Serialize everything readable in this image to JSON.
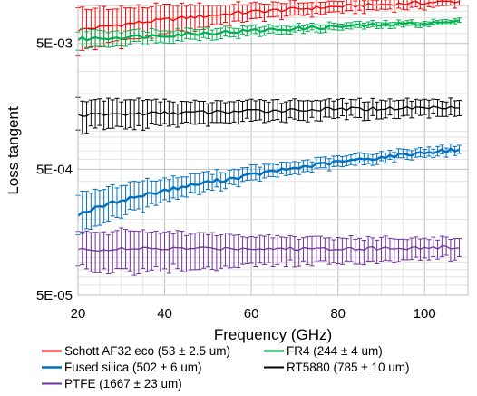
{
  "chart_data": {
    "type": "line",
    "xlabel": "Frequency (GHz)",
    "ylabel": "Loss tangent",
    "xlim": [
      20,
      110
    ],
    "ylim": [
      5e-05,
      0.01
    ],
    "y_scale": "log",
    "grid": true,
    "x_ticks": [
      {
        "value": 20,
        "label": "20"
      },
      {
        "value": 40,
        "label": "40"
      },
      {
        "value": 60,
        "label": "60"
      },
      {
        "value": 80,
        "label": "80"
      },
      {
        "value": 100,
        "label": "100"
      }
    ],
    "y_ticks": [
      {
        "value": 0.005,
        "label": "5E-03"
      },
      {
        "value": 0.0005,
        "label": "5E-04"
      },
      {
        "value": 5e-05,
        "label": "5E-05"
      }
    ],
    "legend_placement": "bottom",
    "series": [
      {
        "name": "Schott AF32 eco (53 ± 2.5 um)",
        "color": "#ff0000",
        "line_width": 1.4,
        "x": [
          20,
          40,
          60,
          80,
          108
        ],
        "y": [
          0.0064,
          0.0077,
          0.0089,
          0.0098,
          0.0108
        ],
        "err_low": [
          0.0022,
          0.0018,
          0.0012,
          0.001,
          0.0009
        ],
        "err_high": [
          0.0032,
          0.0022,
          0.0014,
          0.0011,
          0.001
        ]
      },
      {
        "name": "FR4 (244 ± 4 um)",
        "color": "#00b050",
        "line_width": 2.2,
        "x": [
          20,
          40,
          60,
          80,
          108
        ],
        "y": [
          0.0054,
          0.0058,
          0.0063,
          0.0068,
          0.0074
        ],
        "err_low": [
          0.0008,
          0.0006,
          0.0005,
          0.0004,
          0.0003
        ],
        "err_high": [
          0.0009,
          0.0006,
          0.0005,
          0.0004,
          0.0003
        ]
      },
      {
        "name": "Fused silica (502 ± 6 um)",
        "color": "#0070c0",
        "line_width": 2.4,
        "x": [
          20,
          25,
          30,
          35,
          40,
          45,
          50,
          55,
          60,
          65,
          70,
          75,
          80,
          85,
          90,
          95,
          100,
          105,
          108
        ],
        "y": [
          0.00022,
          0.00025,
          0.000285,
          0.00031,
          0.00034,
          0.000365,
          0.000395,
          0.00042,
          0.00045,
          0.00048,
          0.00051,
          0.00054,
          0.00057,
          0.000595,
          0.00062,
          0.00065,
          0.00068,
          0.0007,
          0.00072
        ],
        "err_low": [
          7e-05,
          7e-05,
          7e-05,
          7e-05,
          6e-05,
          6e-05,
          6e-05,
          5e-05,
          5e-05,
          5e-05,
          5e-05,
          5e-05,
          5e-05,
          5e-05,
          5e-05,
          5e-05,
          5e-05,
          5e-05,
          5e-05
        ],
        "err_high": [
          0.0001,
          0.0001,
          9e-05,
          9e-05,
          8e-05,
          8e-05,
          7e-05,
          7e-05,
          7e-05,
          7e-05,
          6e-05,
          6e-05,
          6e-05,
          6e-05,
          6e-05,
          6e-05,
          6e-05,
          6e-05,
          6e-05
        ]
      },
      {
        "name": "RT5880 (785 ± 10 um)",
        "color": "#000000",
        "line_width": 1.3,
        "x": [
          20,
          30,
          40,
          50,
          60,
          70,
          80,
          90,
          100,
          108
        ],
        "y": [
          0.00135,
          0.00137,
          0.0014,
          0.00142,
          0.00145,
          0.00148,
          0.0015,
          0.00152,
          0.00154,
          0.00158
        ],
        "err_low": [
          0.00035,
          0.0003,
          0.00028,
          0.00026,
          0.00025,
          0.00024,
          0.00023,
          0.00022,
          0.00021,
          0.0002
        ],
        "err_high": [
          0.00045,
          0.0004,
          0.00035,
          0.00032,
          0.0003,
          0.00028,
          0.00026,
          0.00025,
          0.00024,
          0.00023
        ]
      },
      {
        "name": "PTFE (1667 ± 23 um)",
        "color": "#7030a0",
        "line_width": 1.3,
        "x": [
          20,
          30,
          40,
          50,
          60,
          70,
          80,
          90,
          100,
          108
        ],
        "y": [
          0.000115,
          0.000116,
          0.000117,
          0.000118,
          0.000118,
          0.000117,
          0.000118,
          0.000118,
          0.000119,
          0.00012
        ],
        "err_low": [
          3.5e-05,
          4e-05,
          3.8e-05,
          3.5e-05,
          3e-05,
          2.8e-05,
          2.6e-05,
          2.4e-05,
          2.2e-05,
          2e-05
        ],
        "err_high": [
          4e-05,
          4.5e-05,
          4e-05,
          3.5e-05,
          3e-05,
          2.8e-05,
          2.6e-05,
          2.4e-05,
          2.2e-05,
          2e-05
        ]
      }
    ]
  }
}
